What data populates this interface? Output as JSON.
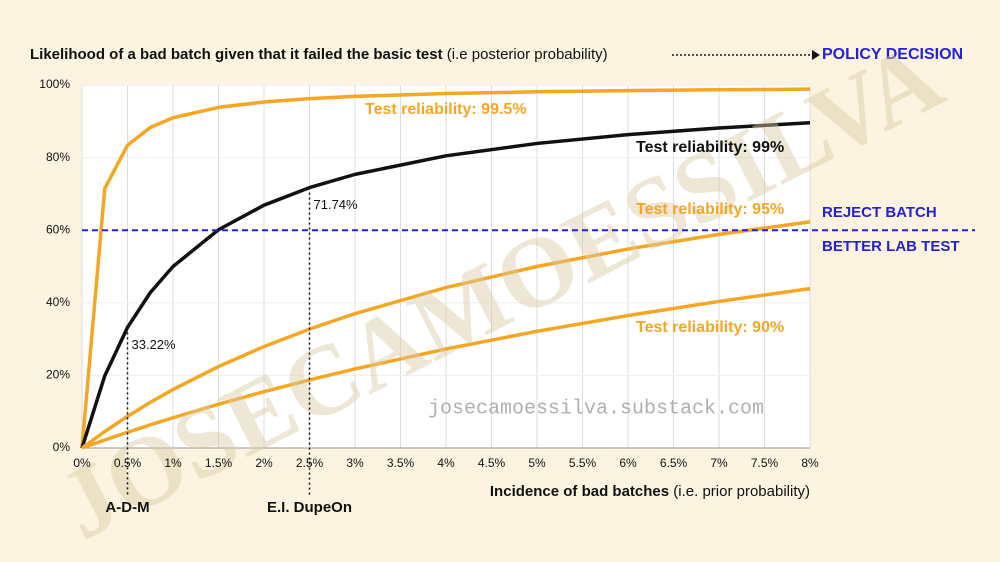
{
  "chart_data": {
    "type": "line",
    "title": "Likelihood of a bad batch given that it failed the basic test",
    "title_note": "(i.e posterior probability)",
    "policy_label": "POLICY DECISION",
    "x_label": "Incidence of bad batches",
    "x_label_note": "(i.e. prior probability)",
    "watermark": "JOSECAMOESSILVA",
    "source": "josecamoessilva.substack.com",
    "x": [
      0,
      0.25,
      0.5,
      0.75,
      1,
      1.5,
      2,
      2.5,
      3,
      4,
      5,
      6,
      7,
      8
    ],
    "series": [
      {
        "name": "Test reliability: 99.5%",
        "color": "#f5a623",
        "values": [
          0,
          71.46,
          83.39,
          88.3,
          90.98,
          93.83,
          95.32,
          96.24,
          96.86,
          97.65,
          98.13,
          98.46,
          98.69,
          98.86
        ]
      },
      {
        "name": "Test reliability: 99%",
        "color": "#111111",
        "values": [
          0,
          19.88,
          33.22,
          42.8,
          50,
          60.12,
          66.89,
          71.74,
          75.38,
          80.49,
          83.9,
          86.34,
          88.17,
          89.59
        ]
      },
      {
        "name": "Test reliability: 95%",
        "color": "#f5a623",
        "values": [
          0,
          4.55,
          8.72,
          12.56,
          16.1,
          22.44,
          27.94,
          32.76,
          37.01,
          44.19,
          50,
          54.81,
          58.85,
          62.3
        ]
      },
      {
        "name": "Test reliability: 90%",
        "color": "#f5a623",
        "values": [
          0,
          2.21,
          4.33,
          6.37,
          8.33,
          12.05,
          15.52,
          18.75,
          21.77,
          27.27,
          32.14,
          36.49,
          40.38,
          43.9
        ]
      }
    ],
    "annotations": [
      {
        "x": 0.5,
        "y": 33.22,
        "value_label": "33.22%",
        "marker": "A-D-M"
      },
      {
        "x": 2.5,
        "y": 71.74,
        "value_label": "71.74%",
        "marker": "E.I. DupeOn"
      }
    ],
    "threshold": {
      "value": 60,
      "color": "#2222dd",
      "labels": [
        "REJECT BATCH",
        "BETTER LAB TEST"
      ]
    },
    "xlim": [
      0,
      8
    ],
    "ylim": [
      0,
      100
    ],
    "xticks": [
      {
        "value": 0,
        "label": "0%"
      },
      {
        "value": 0.5,
        "label": "0.5%"
      },
      {
        "value": 1,
        "label": "1%"
      },
      {
        "value": 1.5,
        "label": "1.5%"
      },
      {
        "value": 2,
        "label": "2%"
      },
      {
        "value": 2.5,
        "label": "2.5%"
      },
      {
        "value": 3,
        "label": "3%"
      },
      {
        "value": 3.5,
        "label": "3.5%"
      },
      {
        "value": 4,
        "label": "4%"
      },
      {
        "value": 4.5,
        "label": "4.5%"
      },
      {
        "value": 5,
        "label": "5%"
      },
      {
        "value": 5.5,
        "label": "5.5%"
      },
      {
        "value": 6,
        "label": "6%"
      },
      {
        "value": 6.5,
        "label": "6.5%"
      },
      {
        "value": 7,
        "label": "7%"
      },
      {
        "value": 7.5,
        "label": "7.5%"
      },
      {
        "value": 8,
        "label": "8%"
      }
    ],
    "yticks": [
      {
        "value": 0,
        "label": "0%"
      },
      {
        "value": 20,
        "label": "20%"
      },
      {
        "value": 40,
        "label": "40%"
      },
      {
        "value": 60,
        "label": "60%"
      },
      {
        "value": 80,
        "label": "80%"
      },
      {
        "value": 100,
        "label": "100%"
      }
    ],
    "grid": true
  }
}
